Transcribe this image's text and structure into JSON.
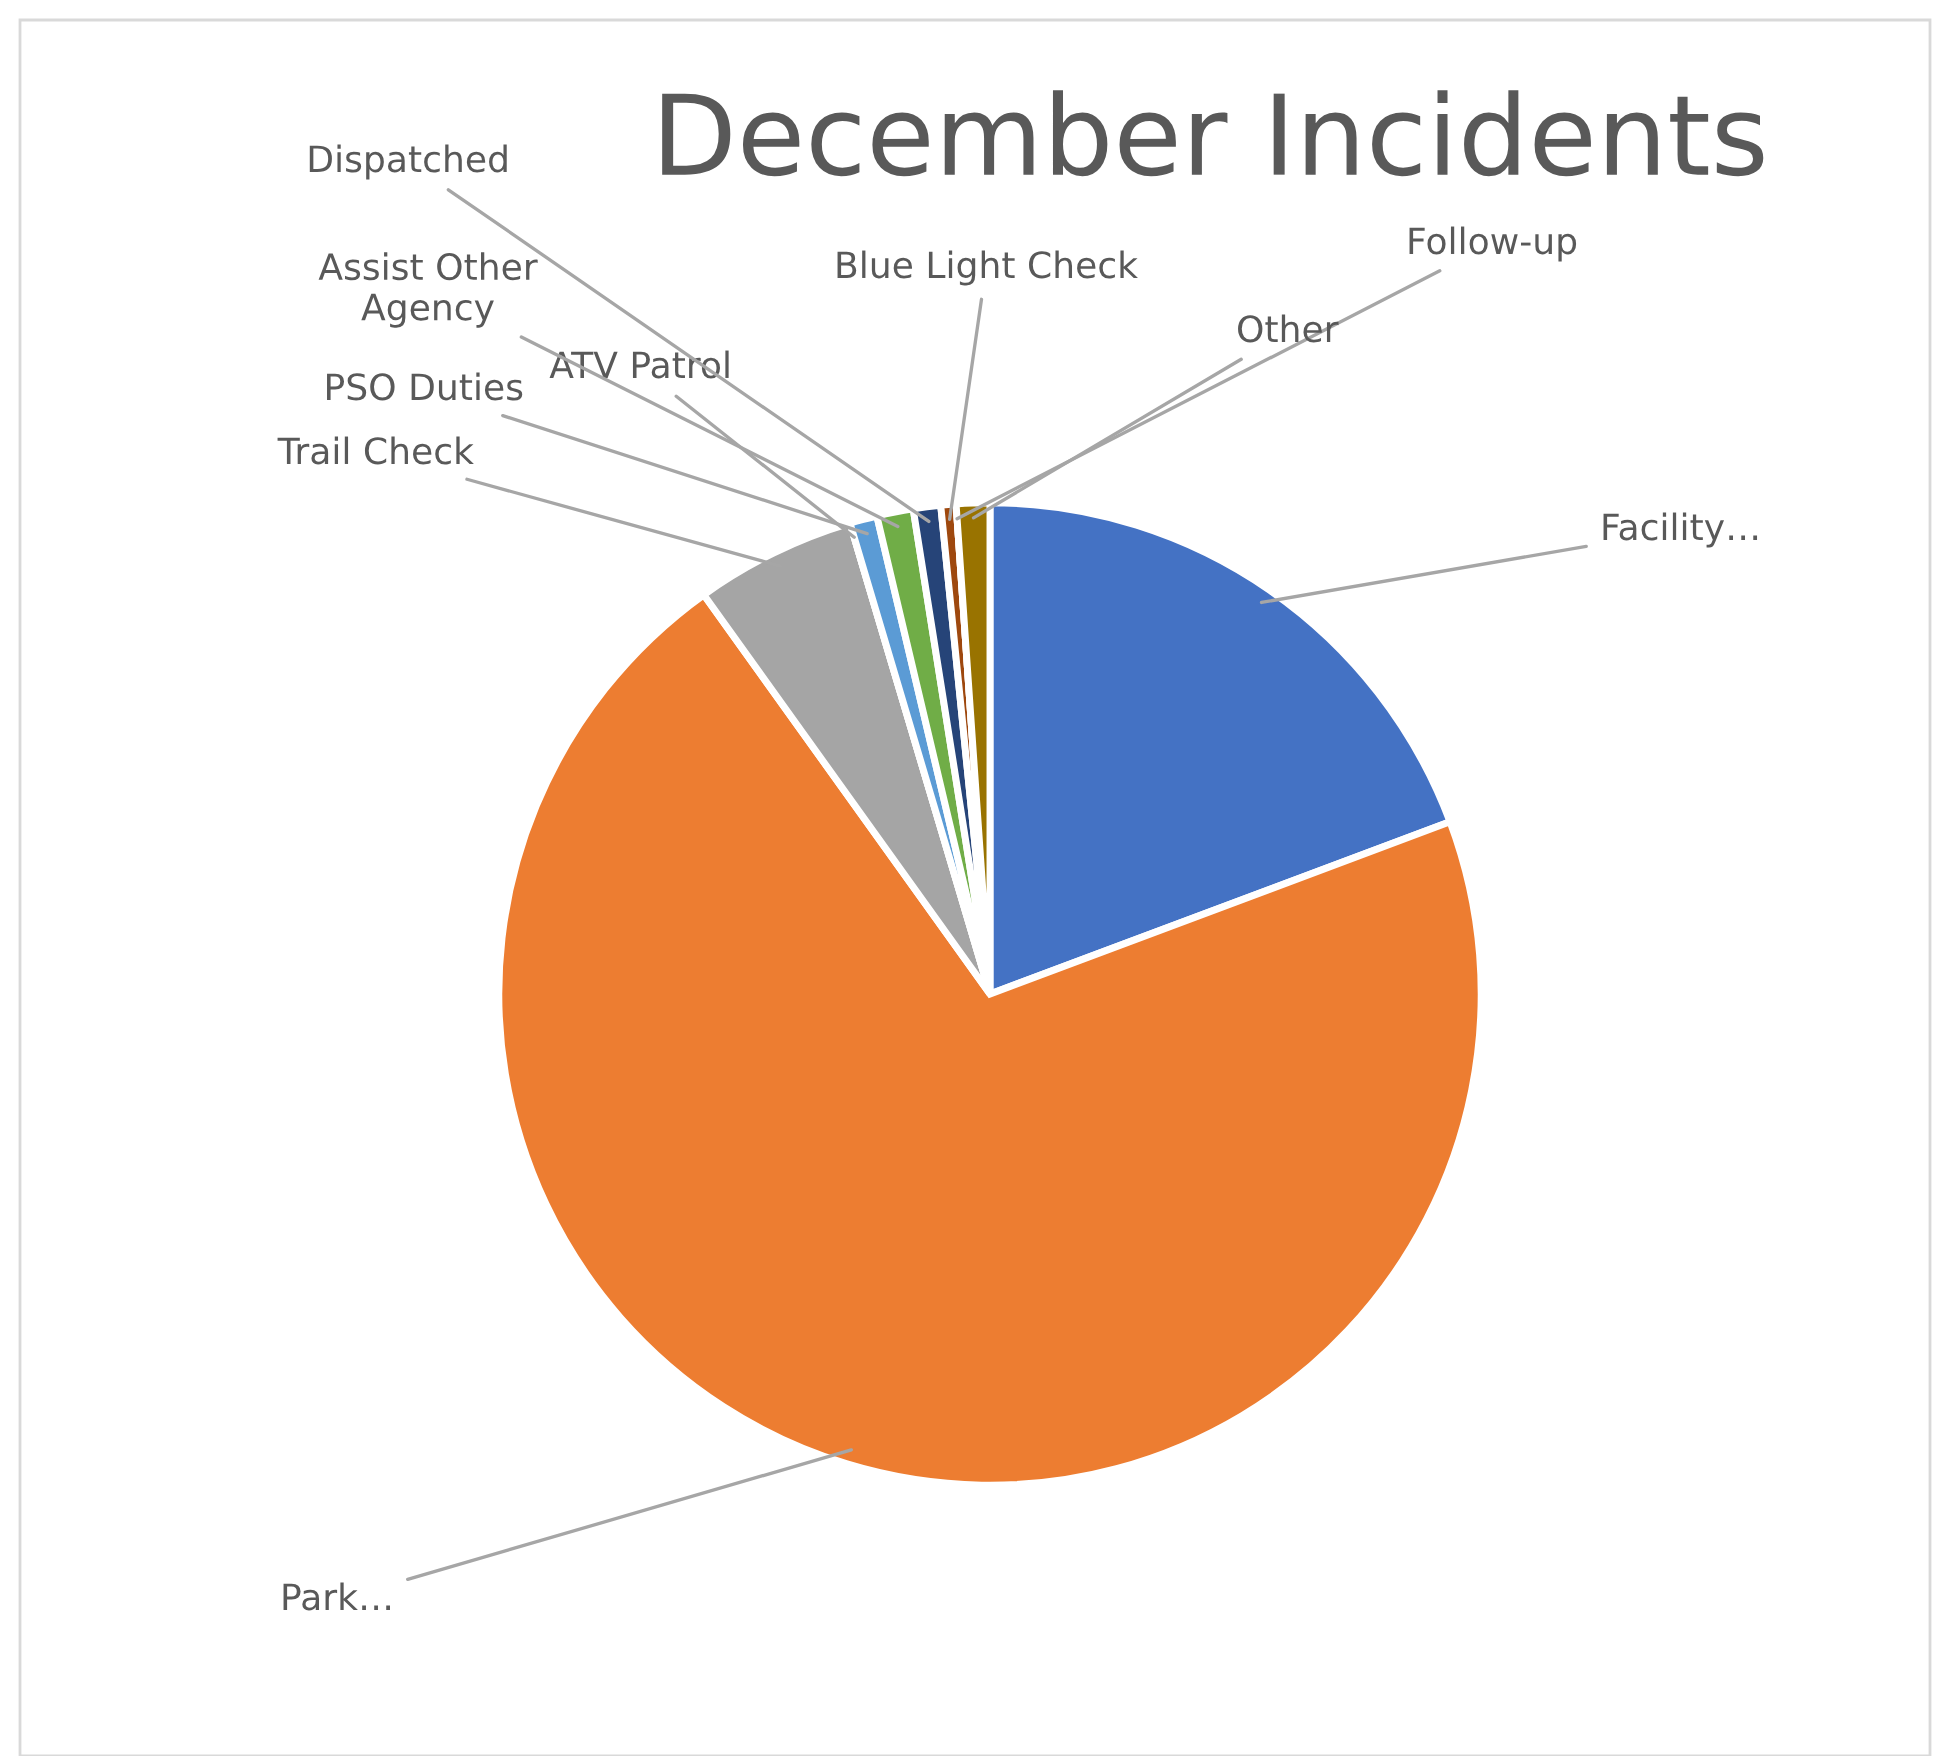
{
  "chart_data": {
    "type": "pie",
    "title": "December Incidents",
    "categories": [
      "Facility…",
      "Park…",
      "Trail Check",
      "ATV Patrol",
      "PSO Duties",
      "Assist Other\nAgency",
      "Dispatched",
      "Blue Light Check",
      "Follow-up",
      "Other"
    ],
    "values": [
      19.3,
      70.8,
      5.3,
      0,
      0.9,
      1.2,
      0.9,
      0.5,
      0,
      1.1
    ],
    "colors": [
      "#4472c4",
      "#ed7d31",
      "#a5a5a5",
      "#ffc000",
      "#5b9bd5",
      "#70ad47",
      "#264478",
      "#9e480e",
      "#636363",
      "#997300"
    ],
    "legend": false
  }
}
